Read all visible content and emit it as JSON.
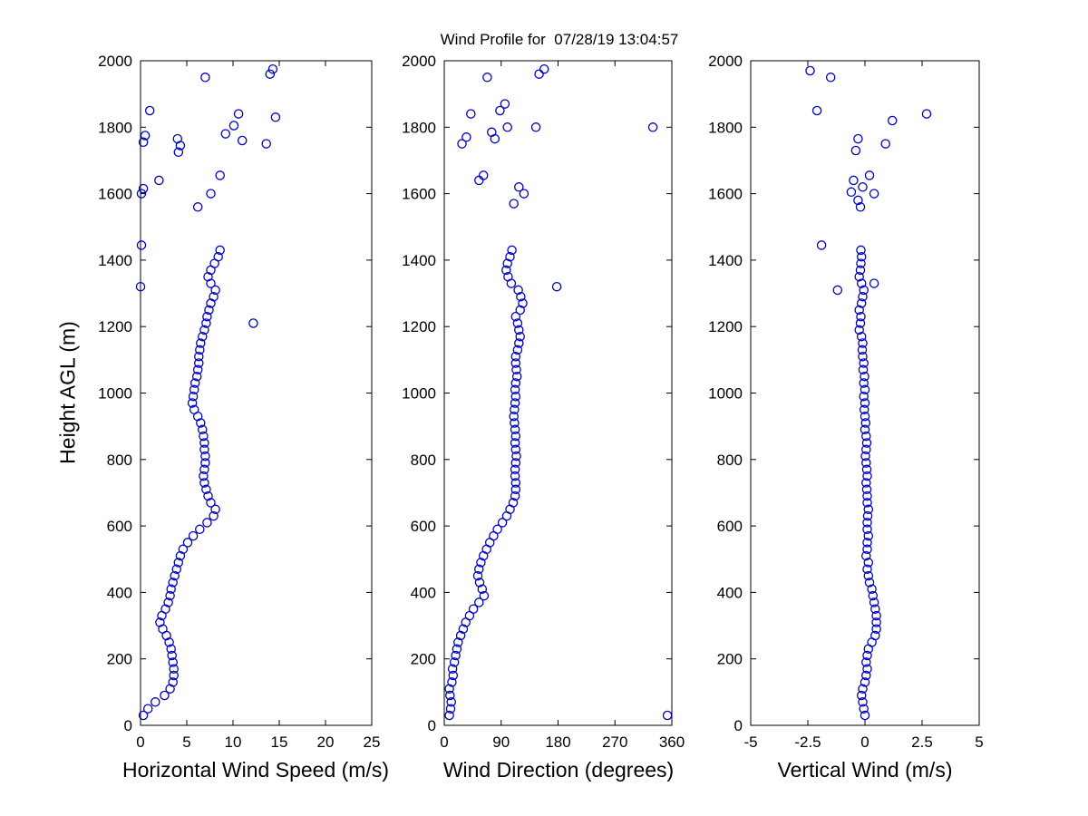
{
  "figure": {
    "title": "Wind Profile for  07/28/19 13:04:57",
    "ylabel": "Height AGL (m)"
  },
  "chart_data": {
    "type": "scatter",
    "title": "Wind Profile for  07/28/19 13:04:57",
    "ylabel": "Height AGL (m)",
    "ylim": [
      0,
      2000
    ],
    "yticks": [
      0,
      200,
      400,
      600,
      800,
      1000,
      1200,
      1400,
      1600,
      1800,
      2000
    ],
    "marker": {
      "shape": "circle-open",
      "color": "#0000BB"
    },
    "legend": "none",
    "grid": false,
    "shared_profile_heights_m": [
      30,
      50,
      70,
      90,
      110,
      130,
      150,
      170,
      190,
      210,
      230,
      250,
      270,
      290,
      310,
      330,
      350,
      370,
      390,
      410,
      430,
      450,
      470,
      490,
      510,
      530,
      550,
      570,
      590,
      610,
      630,
      650,
      670,
      690,
      710,
      730,
      750,
      770,
      790,
      810,
      830,
      850,
      870,
      890,
      910,
      930,
      950,
      970,
      990,
      1010,
      1030,
      1050,
      1070,
      1090,
      1110,
      1130,
      1150,
      1170,
      1190,
      1210,
      1230,
      1250,
      1270,
      1290,
      1310,
      1330,
      1350,
      1370,
      1390,
      1410,
      1430
    ],
    "panels": [
      {
        "name": "horizontal-wind-speed",
        "xlabel": "Horizontal Wind Speed (m/s)",
        "xlim": [
          0,
          25
        ],
        "xticks": [
          0,
          5,
          10,
          15,
          20,
          25
        ],
        "profile_values": [
          0.3,
          0.8,
          1.6,
          2.6,
          3.2,
          3.5,
          3.6,
          3.6,
          3.5,
          3.4,
          3.3,
          3.1,
          2.8,
          2.4,
          2.1,
          2.3,
          2.7,
          3.0,
          3.2,
          3.3,
          3.5,
          3.7,
          3.9,
          4.1,
          4.3,
          4.6,
          5.1,
          5.7,
          6.4,
          7.2,
          7.9,
          8.1,
          7.6,
          7.3,
          7.1,
          6.9,
          6.8,
          6.9,
          7.0,
          7.0,
          6.9,
          6.9,
          6.8,
          6.7,
          6.5,
          6.2,
          5.8,
          5.6,
          5.7,
          5.8,
          5.9,
          6.1,
          6.2,
          6.3,
          6.3,
          6.4,
          6.5,
          6.7,
          6.9,
          7.1,
          7.2,
          7.4,
          7.6,
          7.9,
          8.1,
          7.6,
          7.3,
          7.6,
          8.0,
          8.4,
          8.6
        ],
        "extra_points": [
          [
            12.2,
            1210
          ],
          [
            0.0,
            1320
          ],
          [
            0.1,
            1445
          ],
          [
            0.1,
            1600
          ],
          [
            0.3,
            1615
          ],
          [
            1.0,
            1850
          ],
          [
            2.0,
            1640
          ],
          [
            0.3,
            1755
          ],
          [
            0.5,
            1775
          ],
          [
            4.1,
            1725
          ],
          [
            4.3,
            1745
          ],
          [
            4.0,
            1765
          ],
          [
            6.2,
            1560
          ],
          [
            7.0,
            1950
          ],
          [
            7.6,
            1600
          ],
          [
            8.6,
            1655
          ],
          [
            9.2,
            1780
          ],
          [
            10.1,
            1805
          ],
          [
            10.6,
            1840
          ],
          [
            11.0,
            1760
          ],
          [
            13.6,
            1750
          ],
          [
            14.0,
            1960
          ],
          [
            14.3,
            1975
          ],
          [
            14.6,
            1830
          ]
        ]
      },
      {
        "name": "wind-direction",
        "xlabel": "Wind Direction (degrees)",
        "xlim": [
          0,
          360
        ],
        "xticks": [
          0,
          90,
          180,
          270,
          360
        ],
        "profile_values": [
          8,
          10,
          11,
          9,
          8,
          12,
          14,
          13,
          16,
          18,
          20,
          22,
          26,
          30,
          34,
          40,
          46,
          55,
          63,
          60,
          56,
          53,
          55,
          58,
          62,
          67,
          72,
          78,
          84,
          92,
          99,
          104,
          109,
          112,
          113,
          113,
          112,
          112,
          113,
          114,
          113,
          112,
          113,
          112,
          111,
          110,
          111,
          112,
          113,
          112,
          113,
          115,
          114,
          113,
          113,
          116,
          118,
          120,
          118,
          116,
          113,
          120,
          124,
          121,
          117,
          106,
          101,
          98,
          100,
          104,
          107
        ],
        "extra_points": [
          [
            353,
            30
          ],
          [
            178,
            1320
          ],
          [
            330,
            1800
          ],
          [
            28,
            1750
          ],
          [
            35,
            1770
          ],
          [
            42,
            1840
          ],
          [
            55,
            1640
          ],
          [
            62,
            1655
          ],
          [
            68,
            1950
          ],
          [
            88,
            1850
          ],
          [
            96,
            1870
          ],
          [
            100,
            1800
          ],
          [
            80,
            1765
          ],
          [
            75,
            1785
          ],
          [
            118,
            1620
          ],
          [
            126,
            1600
          ],
          [
            150,
            1960
          ],
          [
            158,
            1975
          ],
          [
            145,
            1800
          ],
          [
            110,
            1570
          ]
        ]
      },
      {
        "name": "vertical-wind",
        "xlabel": "Vertical Wind (m/s)",
        "xlim": [
          -5,
          5
        ],
        "xticks": [
          -5,
          -2.5,
          0,
          2.5,
          5
        ],
        "profile_values": [
          0.0,
          -0.05,
          -0.1,
          -0.15,
          -0.1,
          0.0,
          0.05,
          0.1,
          0.05,
          0.1,
          0.15,
          0.3,
          0.45,
          0.5,
          0.5,
          0.5,
          0.45,
          0.4,
          0.35,
          0.3,
          0.2,
          0.15,
          0.1,
          0.15,
          0.05,
          0.1,
          0.1,
          0.15,
          0.1,
          0.1,
          0.12,
          0.15,
          0.1,
          0.1,
          0.08,
          0.05,
          0.1,
          0.08,
          0.05,
          0.02,
          0.05,
          0.08,
          0.05,
          0.0,
          0.03,
          0.0,
          -0.03,
          0.0,
          -0.05,
          0.0,
          -0.05,
          -0.02,
          -0.08,
          -0.05,
          -0.1,
          -0.12,
          -0.1,
          -0.15,
          -0.25,
          -0.2,
          -0.18,
          -0.25,
          -0.15,
          -0.1,
          -0.05,
          -0.15,
          -0.25,
          -0.2,
          -0.18,
          -0.15,
          -0.18
        ],
        "extra_points": [
          [
            -2.4,
            1970
          ],
          [
            -1.5,
            1950
          ],
          [
            -2.1,
            1850
          ],
          [
            -1.9,
            1445
          ],
          [
            -1.2,
            1310
          ],
          [
            0.4,
            1330
          ],
          [
            2.7,
            1840
          ],
          [
            1.2,
            1820
          ],
          [
            0.9,
            1750
          ],
          [
            -0.4,
            1730
          ],
          [
            -0.3,
            1765
          ],
          [
            -0.5,
            1640
          ],
          [
            -0.1,
            1620
          ],
          [
            0.4,
            1600
          ],
          [
            -0.3,
            1580
          ],
          [
            -0.2,
            1560
          ],
          [
            0.2,
            1655
          ],
          [
            -0.6,
            1605
          ]
        ]
      }
    ]
  }
}
